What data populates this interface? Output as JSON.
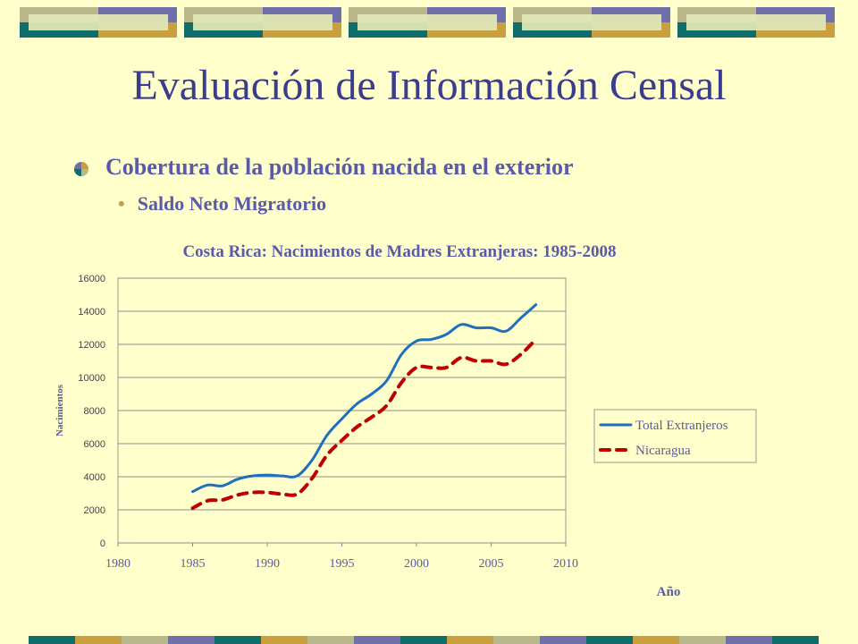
{
  "slide": {
    "title": "Evaluación de Información Censal",
    "bullet_level1": "Cobertura de la población nacida en el exterior",
    "bullet_level2": "Saldo Neto Migratorio"
  },
  "colors": {
    "background": "#ffffcc",
    "title": "#3b3b8f",
    "bullet_text": "#5a5aa8",
    "series_total": "#1f6fbf",
    "series_nicaragua": "#c00000",
    "deco_teal": "#0e6d6b",
    "deco_gold": "#c8a040",
    "deco_slate": "#6f6faa",
    "deco_sage": "#b8b88a"
  },
  "chart_data": {
    "type": "line",
    "title": "Costa Rica: Nacimientos de Madres Extranjeras: 1985-2008",
    "xlabel": "Año",
    "ylabel": "Nacimientos",
    "xlim": [
      1980,
      2010
    ],
    "ylim": [
      0,
      16000
    ],
    "xticks": [
      1980,
      1985,
      1990,
      1995,
      2000,
      2005,
      2010
    ],
    "yticks": [
      0,
      2000,
      4000,
      6000,
      8000,
      10000,
      12000,
      14000,
      16000
    ],
    "grid": "horizontal",
    "legend_position": "right",
    "x": [
      1985,
      1986,
      1987,
      1988,
      1989,
      1990,
      1991,
      1992,
      1993,
      1994,
      1995,
      1996,
      1997,
      1998,
      1999,
      2000,
      2001,
      2002,
      2003,
      2004,
      2005,
      2006,
      2007,
      2008
    ],
    "series": [
      {
        "name": "Total Extranjeros",
        "style": "solid",
        "values": [
          3100,
          3500,
          3450,
          3850,
          4050,
          4100,
          4050,
          4050,
          5000,
          6500,
          7500,
          8400,
          9000,
          9800,
          11400,
          12200,
          12300,
          12600,
          13200,
          13000,
          13000,
          12800,
          13600,
          14400
        ]
      },
      {
        "name": "Nicaragua",
        "style": "dashed",
        "values": [
          2100,
          2550,
          2600,
          2900,
          3050,
          3050,
          2950,
          2950,
          3900,
          5300,
          6200,
          7000,
          7600,
          8300,
          9700,
          10600,
          10600,
          10600,
          11200,
          11000,
          11000,
          10800,
          11400,
          12300
        ]
      }
    ]
  }
}
